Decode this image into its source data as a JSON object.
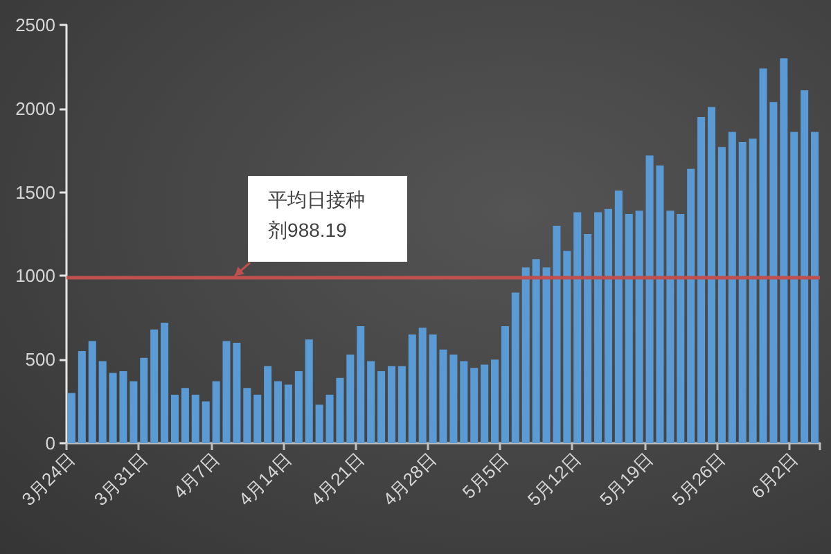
{
  "chart_data": {
    "type": "bar",
    "categories": [
      "3月24日",
      null,
      null,
      null,
      null,
      null,
      null,
      "3月31日",
      null,
      null,
      null,
      null,
      null,
      null,
      "4月7日",
      null,
      null,
      null,
      null,
      null,
      null,
      "4月14日",
      null,
      null,
      null,
      null,
      null,
      null,
      "4月21日",
      null,
      null,
      null,
      null,
      null,
      null,
      "4月28日",
      null,
      null,
      null,
      null,
      null,
      null,
      "5月5日",
      null,
      null,
      null,
      null,
      null,
      null,
      "5月12日",
      null,
      null,
      null,
      null,
      null,
      null,
      "5月19日",
      null,
      null,
      null,
      null,
      null,
      null,
      "5月26日",
      null,
      null,
      null,
      null,
      null,
      null,
      "6月2日",
      null,
      null
    ],
    "values": [
      300,
      550,
      610,
      490,
      420,
      430,
      370,
      510,
      680,
      720,
      290,
      330,
      290,
      250,
      370,
      610,
      600,
      330,
      290,
      460,
      370,
      350,
      430,
      620,
      230,
      290,
      390,
      530,
      700,
      490,
      430,
      460,
      460,
      650,
      690,
      650,
      560,
      530,
      490,
      450,
      470,
      500,
      700,
      900,
      1050,
      1100,
      1050,
      1300,
      1150,
      1380,
      1250,
      1380,
      1400,
      1510,
      1370,
      1390,
      1720,
      1660,
      1390,
      1370,
      1640,
      1950,
      2010,
      1770,
      1860,
      1800,
      1820,
      2240,
      2040,
      2300,
      1860,
      2110,
      1860
    ],
    "color": "#5b9bd5",
    "ylim": [
      0,
      2500
    ],
    "yticks": [
      0,
      500,
      1000,
      1500,
      2000,
      2500
    ],
    "grid": false,
    "ref_lines": [
      {
        "axis": "y",
        "value": 988.19,
        "label": "平均日接种剂988.19",
        "color": "#c0504d"
      }
    ]
  }
}
